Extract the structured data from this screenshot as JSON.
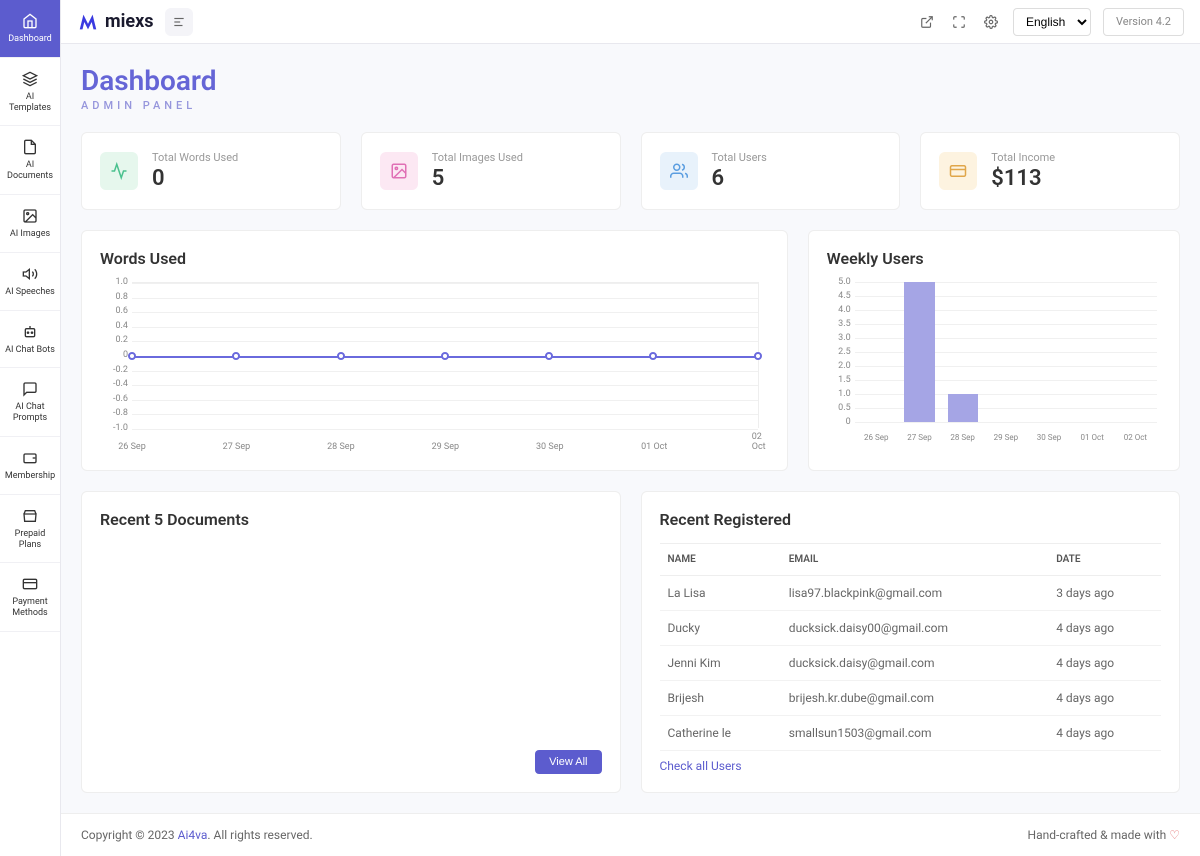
{
  "brand": "miexs",
  "topbar": {
    "language": "English",
    "version": "Version 4.2"
  },
  "sidebar": {
    "items": [
      {
        "label": "Dashboard",
        "active": true
      },
      {
        "label": "AI Templates"
      },
      {
        "label": "AI Documents"
      },
      {
        "label": "AI Images"
      },
      {
        "label": "AI Speeches"
      },
      {
        "label": "AI Chat Bots"
      },
      {
        "label": "AI Chat Prompts"
      },
      {
        "label": "Membership"
      },
      {
        "label": "Prepaid Plans"
      },
      {
        "label": "Payment Methods"
      }
    ]
  },
  "page": {
    "title": "Dashboard",
    "subtitle": "ADMIN PANEL"
  },
  "stats": [
    {
      "label": "Total Words Used",
      "value": "0",
      "icon_bg": "#e6f7ed",
      "icon_color": "#4ac18e"
    },
    {
      "label": "Total Images Used",
      "value": "5",
      "icon_bg": "#fce8f3",
      "icon_color": "#e070b5"
    },
    {
      "label": "Total Users",
      "value": "6",
      "icon_bg": "#e8f2fb",
      "icon_color": "#5a9de0"
    },
    {
      "label": "Total Income",
      "value": "$113",
      "icon_bg": "#fdf3e0",
      "icon_color": "#e0a64a"
    }
  ],
  "words_chart": {
    "title": "Words Used",
    "type": "line",
    "color": "#6a6add",
    "grid_color": "#f0f0f0",
    "ylim": [
      -1.0,
      1.0
    ],
    "yticks": [
      "1.0",
      "0.8",
      "0.6",
      "0.4",
      "0.2",
      "0",
      "-0.2",
      "-0.4",
      "-0.6",
      "-0.8",
      "-1.0"
    ],
    "categories": [
      "26 Sep",
      "27 Sep",
      "28 Sep",
      "29 Sep",
      "30 Sep",
      "01 Oct",
      "02 Oct"
    ],
    "values": [
      0,
      0,
      0,
      0,
      0,
      0,
      0
    ]
  },
  "weekly_chart": {
    "title": "Weekly Users",
    "type": "bar",
    "bar_color": "#a5a5e5",
    "ylim": [
      0,
      5.0
    ],
    "yticks": [
      "5.0",
      "4.5",
      "4.0",
      "3.5",
      "3.0",
      "2.5",
      "2.0",
      "1.5",
      "1.0",
      "0.5",
      "0"
    ],
    "categories": [
      "26 Sep",
      "27 Sep",
      "28 Sep",
      "29 Sep",
      "30 Sep",
      "01 Oct",
      "02 Oct"
    ],
    "values": [
      0,
      5,
      1,
      0,
      0,
      0,
      0
    ]
  },
  "recent_docs": {
    "title": "Recent 5 Documents",
    "view_all": "View All"
  },
  "recent_registered": {
    "title": "Recent Registered",
    "columns": [
      "NAME",
      "EMAIL",
      "DATE"
    ],
    "rows": [
      [
        "La Lisa",
        "lisa97.blackpink@gmail.com",
        "3 days ago"
      ],
      [
        "Ducky",
        "ducksick.daisy00@gmail.com",
        "4 days ago"
      ],
      [
        "Jenni Kim",
        "ducksick.daisy@gmail.com",
        "4 days ago"
      ],
      [
        "Brijesh",
        "brijesh.kr.dube@gmail.com",
        "4 days ago"
      ],
      [
        "Catherine le",
        "smallsun1503@gmail.com",
        "4 days ago"
      ]
    ],
    "check_all": "Check all Users"
  },
  "footer": {
    "copyright_a": "Copyright © 2023 ",
    "copyright_link": "Ai4va",
    "copyright_b": ". All rights reserved.",
    "crafted": "Hand-crafted & made with"
  }
}
